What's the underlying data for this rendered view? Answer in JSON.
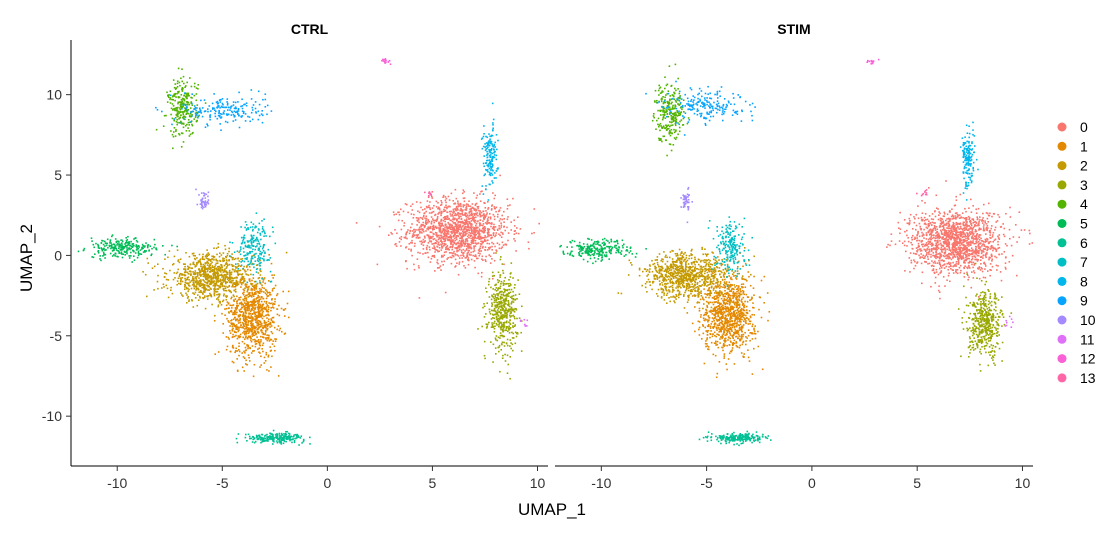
{
  "chart_data": {
    "type": "scatter",
    "xlabel": "UMAP_1",
    "ylabel": "UMAP_2",
    "xlim": [
      -12.2,
      10.5
    ],
    "ylim": [
      -13.1,
      13.4
    ],
    "xticks": [
      -10,
      -5,
      0,
      5,
      10
    ],
    "yticks": [
      -10,
      -5,
      0,
      5,
      10
    ],
    "legend_position": "right",
    "panels": [
      {
        "title": "CTRL",
        "clusters": [
          {
            "id": "0",
            "x": 6.2,
            "y": 1.6,
            "sx": 1.2,
            "sy": 1.0,
            "n": 1400
          },
          {
            "id": "1",
            "x": -3.6,
            "y": -3.7,
            "sx": 0.6,
            "sy": 1.3,
            "n": 900
          },
          {
            "id": "2",
            "x": -5.6,
            "y": -1.3,
            "sx": 1.0,
            "sy": 0.7,
            "n": 850
          },
          {
            "id": "3",
            "x": 8.3,
            "y": -3.4,
            "sx": 0.35,
            "sy": 1.2,
            "n": 450
          },
          {
            "id": "4",
            "x": -6.9,
            "y": 9.2,
            "sx": 0.35,
            "sy": 0.9,
            "n": 260
          },
          {
            "id": "5",
            "x": -9.8,
            "y": 0.5,
            "sx": 0.8,
            "sy": 0.3,
            "n": 250
          },
          {
            "id": "6",
            "x": -2.5,
            "y": -11.3,
            "sx": 0.7,
            "sy": 0.15,
            "n": 220
          },
          {
            "id": "7",
            "x": -3.5,
            "y": 0.6,
            "sx": 0.4,
            "sy": 0.8,
            "n": 200
          },
          {
            "id": "8",
            "x": 7.7,
            "y": 6.2,
            "sx": 0.18,
            "sy": 1.0,
            "n": 150
          },
          {
            "id": "9",
            "x": -5.0,
            "y": 9.1,
            "sx": 1.0,
            "sy": 0.45,
            "n": 200
          },
          {
            "id": "10",
            "x": -5.9,
            "y": 3.4,
            "sx": 0.12,
            "sy": 0.35,
            "n": 45
          },
          {
            "id": "11",
            "x": 9.4,
            "y": -4.2,
            "sx": 0.1,
            "sy": 0.2,
            "n": 8
          },
          {
            "id": "12",
            "x": 2.8,
            "y": 12.1,
            "sx": 0.12,
            "sy": 0.12,
            "n": 15
          },
          {
            "id": "13",
            "x": 4.8,
            "y": 3.9,
            "sx": 0.12,
            "sy": 0.08,
            "n": 10
          }
        ]
      },
      {
        "title": "STIM",
        "clusters": [
          {
            "id": "0",
            "x": 6.8,
            "y": 0.9,
            "sx": 1.1,
            "sy": 1.0,
            "n": 1400
          },
          {
            "id": "1",
            "x": -4.0,
            "y": -3.6,
            "sx": 0.6,
            "sy": 1.2,
            "n": 950
          },
          {
            "id": "2",
            "x": -6.0,
            "y": -1.2,
            "sx": 1.0,
            "sy": 0.7,
            "n": 850
          },
          {
            "id": "3",
            "x": 8.2,
            "y": -4.3,
            "sx": 0.4,
            "sy": 1.0,
            "n": 450
          },
          {
            "id": "4",
            "x": -6.8,
            "y": 9.0,
            "sx": 0.35,
            "sy": 0.9,
            "n": 260
          },
          {
            "id": "5",
            "x": -10.2,
            "y": 0.4,
            "sx": 0.8,
            "sy": 0.3,
            "n": 240
          },
          {
            "id": "6",
            "x": -3.5,
            "y": -11.3,
            "sx": 0.6,
            "sy": 0.15,
            "n": 220
          },
          {
            "id": "7",
            "x": -3.9,
            "y": 0.6,
            "sx": 0.35,
            "sy": 0.8,
            "n": 200
          },
          {
            "id": "8",
            "x": 7.4,
            "y": 6.0,
            "sx": 0.15,
            "sy": 0.9,
            "n": 150
          },
          {
            "id": "9",
            "x": -5.1,
            "y": 9.4,
            "sx": 0.9,
            "sy": 0.5,
            "n": 200
          },
          {
            "id": "10",
            "x": -6.0,
            "y": 3.5,
            "sx": 0.12,
            "sy": 0.35,
            "n": 45
          },
          {
            "id": "11",
            "x": 9.4,
            "y": -4.2,
            "sx": 0.1,
            "sy": 0.2,
            "n": 8
          },
          {
            "id": "12",
            "x": 2.8,
            "y": 12.1,
            "sx": 0.12,
            "sy": 0.12,
            "n": 15
          },
          {
            "id": "13",
            "x": 5.3,
            "y": 3.9,
            "sx": 0.12,
            "sy": 0.08,
            "n": 10
          }
        ]
      }
    ],
    "legend": [
      {
        "label": "0",
        "color": "#F8766D"
      },
      {
        "label": "1",
        "color": "#E38900"
      },
      {
        "label": "2",
        "color": "#C49A00"
      },
      {
        "label": "3",
        "color": "#99A800"
      },
      {
        "label": "4",
        "color": "#53B400"
      },
      {
        "label": "5",
        "color": "#00BC56"
      },
      {
        "label": "6",
        "color": "#00C094"
      },
      {
        "label": "7",
        "color": "#00BFC4"
      },
      {
        "label": "8",
        "color": "#00B6EB"
      },
      {
        "label": "9",
        "color": "#06A4FF"
      },
      {
        "label": "10",
        "color": "#A58AFF"
      },
      {
        "label": "11",
        "color": "#DF70F8"
      },
      {
        "label": "12",
        "color": "#FB61D7"
      },
      {
        "label": "13",
        "color": "#FF66A8"
      }
    ]
  }
}
